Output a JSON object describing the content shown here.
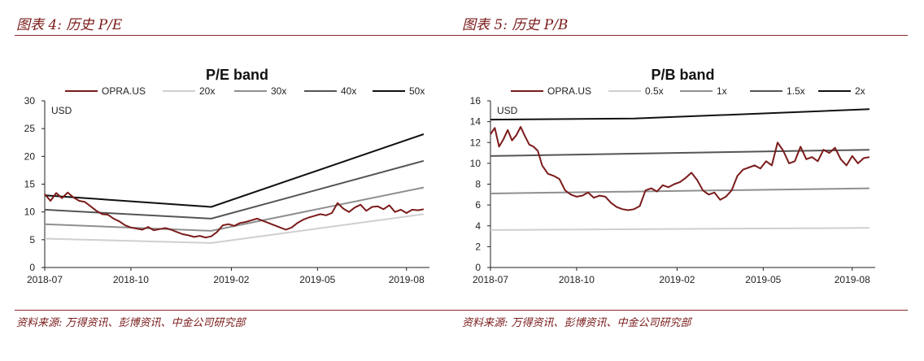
{
  "panels": [
    {
      "fig_title": "图表 4:  历史 P/E",
      "source": "资料来源:  万得资讯、彭博资讯、中金公司研究部"
    },
    {
      "fig_title": "图表 5:  历史 P/B",
      "source": "资料来源:  万得资讯、彭博资讯、中金公司研究部"
    }
  ],
  "chart_data": [
    {
      "type": "line",
      "title": "P/E band",
      "unit_label": "USD",
      "ylim": [
        0,
        30
      ],
      "yticks": [
        0,
        5,
        10,
        15,
        20,
        25,
        30
      ],
      "xlim": [
        0,
        13.4
      ],
      "xticks": [
        {
          "label": "2018-07",
          "pos": 0
        },
        {
          "label": "2018-10",
          "pos": 3
        },
        {
          "label": "2019-02",
          "pos": 6.5
        },
        {
          "label": "2019-05",
          "pos": 9.5
        },
        {
          "label": "2019-08",
          "pos": 12.6
        }
      ],
      "series": [
        {
          "name": "OPRA.US",
          "color": "#7b1b1b",
          "width": 2,
          "points": [
            [
              0,
              13.2
            ],
            [
              0.2,
              12.0
            ],
            [
              0.4,
              13.4
            ],
            [
              0.6,
              12.5
            ],
            [
              0.8,
              13.5
            ],
            [
              1.0,
              12.6
            ],
            [
              1.2,
              12.0
            ],
            [
              1.4,
              11.8
            ],
            [
              1.6,
              11.0
            ],
            [
              1.8,
              10.2
            ],
            [
              2.0,
              9.6
            ],
            [
              2.2,
              9.5
            ],
            [
              2.4,
              8.8
            ],
            [
              2.6,
              8.3
            ],
            [
              2.8,
              7.6
            ],
            [
              3.0,
              7.2
            ],
            [
              3.2,
              7.0
            ],
            [
              3.4,
              6.8
            ],
            [
              3.6,
              7.3
            ],
            [
              3.8,
              6.7
            ],
            [
              4.0,
              6.9
            ],
            [
              4.2,
              7.1
            ],
            [
              4.4,
              6.8
            ],
            [
              4.6,
              6.4
            ],
            [
              4.8,
              6.0
            ],
            [
              5.0,
              5.8
            ],
            [
              5.2,
              5.5
            ],
            [
              5.4,
              5.7
            ],
            [
              5.6,
              5.4
            ],
            [
              5.8,
              5.6
            ],
            [
              6.0,
              6.4
            ],
            [
              6.2,
              7.6
            ],
            [
              6.4,
              7.8
            ],
            [
              6.6,
              7.5
            ],
            [
              6.8,
              8.0
            ],
            [
              7.0,
              8.2
            ],
            [
              7.2,
              8.5
            ],
            [
              7.4,
              8.8
            ],
            [
              7.6,
              8.4
            ],
            [
              7.8,
              8.0
            ],
            [
              8.0,
              7.6
            ],
            [
              8.2,
              7.2
            ],
            [
              8.4,
              6.8
            ],
            [
              8.6,
              7.2
            ],
            [
              8.8,
              8.0
            ],
            [
              9.0,
              8.6
            ],
            [
              9.2,
              9.0
            ],
            [
              9.4,
              9.3
            ],
            [
              9.6,
              9.6
            ],
            [
              9.8,
              9.4
            ],
            [
              10.0,
              9.8
            ],
            [
              10.2,
              11.6
            ],
            [
              10.4,
              10.6
            ],
            [
              10.6,
              10.0
            ],
            [
              10.8,
              10.8
            ],
            [
              11.0,
              11.3
            ],
            [
              11.2,
              10.2
            ],
            [
              11.4,
              10.9
            ],
            [
              11.6,
              11.0
            ],
            [
              11.8,
              10.5
            ],
            [
              12.0,
              11.2
            ],
            [
              12.2,
              10.0
            ],
            [
              12.4,
              10.4
            ],
            [
              12.6,
              9.8
            ],
            [
              12.8,
              10.4
            ],
            [
              13.0,
              10.3
            ],
            [
              13.2,
              10.5
            ]
          ]
        },
        {
          "name": "20x",
          "color": "#cfcfcf",
          "width": 2,
          "points": [
            [
              0,
              5.2
            ],
            [
              5.8,
              4.4
            ],
            [
              13.2,
              9.6
            ]
          ]
        },
        {
          "name": "30x",
          "color": "#8f8f8f",
          "width": 2,
          "points": [
            [
              0,
              7.8
            ],
            [
              5.8,
              6.6
            ],
            [
              13.2,
              14.4
            ]
          ]
        },
        {
          "name": "40x",
          "color": "#555555",
          "width": 2,
          "points": [
            [
              0,
              10.4
            ],
            [
              5.8,
              8.8
            ],
            [
              13.2,
              19.2
            ]
          ]
        },
        {
          "name": "50x",
          "color": "#111111",
          "width": 2,
          "points": [
            [
              0,
              13.0
            ],
            [
              5.8,
              10.9
            ],
            [
              13.2,
              24.0
            ]
          ]
        }
      ]
    },
    {
      "type": "line",
      "title": "P/B band",
      "unit_label": "USD",
      "ylim": [
        0,
        16
      ],
      "yticks": [
        0,
        2,
        4,
        6,
        8,
        10,
        12,
        14,
        16
      ],
      "xlim": [
        0,
        13.4
      ],
      "xticks": [
        {
          "label": "2018-07",
          "pos": 0
        },
        {
          "label": "2018-10",
          "pos": 3
        },
        {
          "label": "2019-02",
          "pos": 6.5
        },
        {
          "label": "2019-05",
          "pos": 9.5
        },
        {
          "label": "2019-08",
          "pos": 12.6
        }
      ],
      "series": [
        {
          "name": "OPRA.US",
          "color": "#7b1b1b",
          "width": 2,
          "points": [
            [
              0,
              12.8
            ],
            [
              0.15,
              13.4
            ],
            [
              0.3,
              11.6
            ],
            [
              0.45,
              12.3
            ],
            [
              0.6,
              13.2
            ],
            [
              0.75,
              12.2
            ],
            [
              0.9,
              12.7
            ],
            [
              1.05,
              13.5
            ],
            [
              1.2,
              12.6
            ],
            [
              1.35,
              11.8
            ],
            [
              1.5,
              11.6
            ],
            [
              1.65,
              11.2
            ],
            [
              1.8,
              9.8
            ],
            [
              2.0,
              9.0
            ],
            [
              2.2,
              8.8
            ],
            [
              2.4,
              8.5
            ],
            [
              2.6,
              7.4
            ],
            [
              2.8,
              7.0
            ],
            [
              3.0,
              6.8
            ],
            [
              3.2,
              6.9
            ],
            [
              3.4,
              7.2
            ],
            [
              3.6,
              6.7
            ],
            [
              3.8,
              6.9
            ],
            [
              4.0,
              6.8
            ],
            [
              4.2,
              6.2
            ],
            [
              4.4,
              5.8
            ],
            [
              4.6,
              5.6
            ],
            [
              4.8,
              5.5
            ],
            [
              5.0,
              5.6
            ],
            [
              5.2,
              5.9
            ],
            [
              5.4,
              7.4
            ],
            [
              5.6,
              7.6
            ],
            [
              5.8,
              7.3
            ],
            [
              6.0,
              7.9
            ],
            [
              6.2,
              7.7
            ],
            [
              6.4,
              8.0
            ],
            [
              6.6,
              8.2
            ],
            [
              6.8,
              8.6
            ],
            [
              7.0,
              9.1
            ],
            [
              7.2,
              8.4
            ],
            [
              7.4,
              7.4
            ],
            [
              7.6,
              7.0
            ],
            [
              7.8,
              7.2
            ],
            [
              8.0,
              6.5
            ],
            [
              8.2,
              6.8
            ],
            [
              8.4,
              7.4
            ],
            [
              8.6,
              8.8
            ],
            [
              8.8,
              9.4
            ],
            [
              9.0,
              9.6
            ],
            [
              9.2,
              9.8
            ],
            [
              9.4,
              9.5
            ],
            [
              9.6,
              10.2
            ],
            [
              9.8,
              9.8
            ],
            [
              10.0,
              12.0
            ],
            [
              10.2,
              11.2
            ],
            [
              10.4,
              10.0
            ],
            [
              10.6,
              10.2
            ],
            [
              10.8,
              11.6
            ],
            [
              11.0,
              10.4
            ],
            [
              11.2,
              10.6
            ],
            [
              11.4,
              10.2
            ],
            [
              11.6,
              11.3
            ],
            [
              11.8,
              11.0
            ],
            [
              12.0,
              11.5
            ],
            [
              12.2,
              10.4
            ],
            [
              12.4,
              9.8
            ],
            [
              12.6,
              10.7
            ],
            [
              12.8,
              10.0
            ],
            [
              13.0,
              10.5
            ],
            [
              13.2,
              10.6
            ]
          ]
        },
        {
          "name": "0.5x",
          "color": "#cfcfcf",
          "width": 2,
          "points": [
            [
              0,
              3.6
            ],
            [
              13.2,
              3.8
            ]
          ]
        },
        {
          "name": "1x",
          "color": "#8f8f8f",
          "width": 2,
          "points": [
            [
              0,
              7.1
            ],
            [
              13.2,
              7.6
            ]
          ]
        },
        {
          "name": "1.5x",
          "color": "#555555",
          "width": 2,
          "points": [
            [
              0,
              10.7
            ],
            [
              13.2,
              11.3
            ]
          ]
        },
        {
          "name": "2x",
          "color": "#111111",
          "width": 2,
          "points": [
            [
              0,
              14.2
            ],
            [
              5.0,
              14.3
            ],
            [
              13.2,
              15.2
            ]
          ]
        }
      ]
    }
  ]
}
